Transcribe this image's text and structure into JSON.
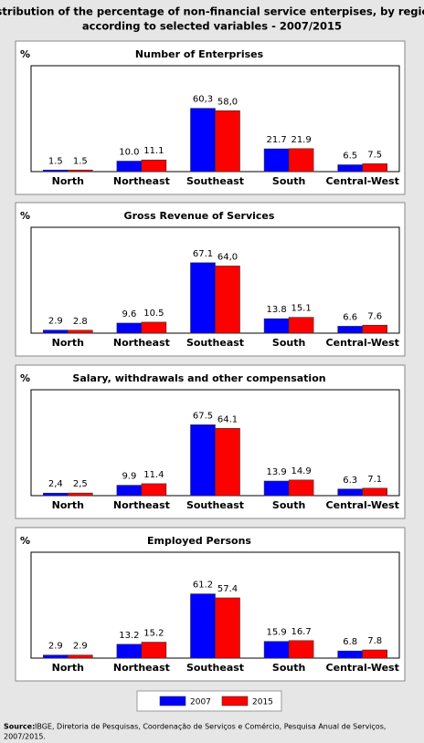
{
  "title_lines": [
    "Distribution of the percentage of non-financial service enterpises, by region,",
    "according to selected variables - 2007/2015"
  ],
  "legend": [
    {
      "name": "2007",
      "color": "#0000ff"
    },
    {
      "name": "2015",
      "color": "#ff0000"
    }
  ],
  "source_label": "Source:",
  "source_text": [
    "IBGE, Diretoria de Pesquisas, Coordenação de Serviços e Comércio, Pesquisa Anual de Serviços,",
    "2007/2015."
  ],
  "chart_data": [
    {
      "type": "bar",
      "title": "Number of Enterprises",
      "y_label": "%",
      "categories": [
        "North",
        "Northeast",
        "Southeast",
        "South",
        "Central-West"
      ],
      "series": [
        {
          "color": "#0000ff",
          "values": [
            1.5,
            10.0,
            60.3,
            21.7,
            6.5
          ],
          "value_labels": [
            "1.5",
            "10.0",
            "60,3",
            "21.7",
            "6.5"
          ]
        },
        {
          "color": "#ff0000",
          "values": [
            1.5,
            11.1,
            58.0,
            21.9,
            7.5
          ],
          "value_labels": [
            "1.5",
            "11.1",
            "58,0",
            "21.9",
            "7.5"
          ]
        }
      ]
    },
    {
      "type": "bar",
      "title": "Gross Revenue of Services",
      "y_label": "%",
      "categories": [
        "North",
        "Northeast",
        "Southeast",
        "South",
        "Central-West"
      ],
      "series": [
        {
          "color": "#0000ff",
          "values": [
            2.9,
            9.6,
            67.1,
            13.8,
            6.6
          ],
          "value_labels": [
            "2.9",
            "9.6",
            "67.1",
            "13.8",
            "6.6"
          ]
        },
        {
          "color": "#ff0000",
          "values": [
            2.8,
            10.5,
            64.0,
            15.1,
            7.6
          ],
          "value_labels": [
            "2.8",
            "10.5",
            "64,0",
            "15.1",
            "7.6"
          ]
        }
      ]
    },
    {
      "type": "bar",
      "title": "Salary, withdrawals and other compensation",
      "y_label": "%",
      "categories": [
        "North",
        "Northeast",
        "Southeast",
        "South",
        "Central-West"
      ],
      "series": [
        {
          "color": "#0000ff",
          "values": [
            2.4,
            9.9,
            67.5,
            13.9,
            6.3
          ],
          "value_labels": [
            "2,4",
            "9.9",
            "67.5",
            "13.9",
            "6.3"
          ]
        },
        {
          "color": "#ff0000",
          "values": [
            2.5,
            11.4,
            64.1,
            14.9,
            7.1
          ],
          "value_labels": [
            "2,5",
            "11.4",
            "64.1",
            "14.9",
            "7.1"
          ]
        }
      ]
    },
    {
      "type": "bar",
      "title": "Employed Persons",
      "y_label": "%",
      "categories": [
        "North",
        "Northeast",
        "Southeast",
        "South",
        "Central-West"
      ],
      "series": [
        {
          "color": "#0000ff",
          "values": [
            2.9,
            13.2,
            61.2,
            15.9,
            6.8
          ],
          "value_labels": [
            "2.9",
            "13.2",
            "61.2",
            "15.9",
            "6.8"
          ]
        },
        {
          "color": "#ff0000",
          "values": [
            2.9,
            15.2,
            57.4,
            16.7,
            7.8
          ],
          "value_labels": [
            "2.9",
            "15.2",
            "57.4",
            "16.7",
            "7.8"
          ]
        }
      ]
    }
  ]
}
